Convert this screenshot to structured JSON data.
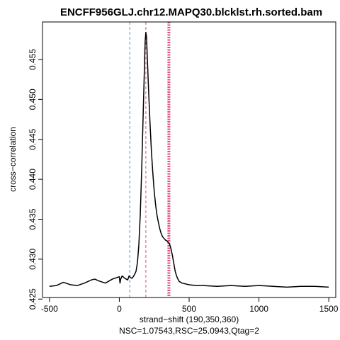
{
  "chart_data": {
    "type": "line",
    "title": "ENCFF956GLJ.chr12.MAPQ30.blcklst.rh.sorted.bam",
    "xlabel": "strand−shift (190,350,360)",
    "subtitle": "NSC=1.07543,RSC=25.0943,Qtag=2",
    "ylabel": "cross−correlation",
    "xlim": [
      -550,
      1550
    ],
    "ylim": [
      0.4252,
      0.4597
    ],
    "x_ticks": [
      -500,
      0,
      500,
      1000,
      1500
    ],
    "x_tick_labels": [
      "-500",
      "0",
      "500",
      "1000",
      "1500"
    ],
    "y_ticks": [
      0.425,
      0.43,
      0.435,
      0.44,
      0.445,
      0.45,
      0.455
    ],
    "y_tick_labels": [
      "0.425",
      "0.430",
      "0.435",
      "0.440",
      "0.445",
      "0.450",
      "0.455"
    ],
    "vlines": [
      {
        "x": 75,
        "color": "#4a90d9",
        "style": "dashed"
      },
      {
        "x": 190,
        "color": "#e0507a",
        "style": "dashed"
      },
      {
        "x": 350,
        "color": "#e0507a",
        "style": "dotted"
      },
      {
        "x": 360,
        "color": "#e0507a",
        "style": "dotted"
      }
    ],
    "series": [
      {
        "color": "#000000",
        "x": [
          -500,
          -450,
          -400,
          -350,
          -300,
          -250,
          -200,
          -175,
          -150,
          -100,
          -50,
          0,
          5,
          10,
          20,
          40,
          60,
          70,
          80,
          90,
          100,
          110,
          120,
          130,
          140,
          150,
          160,
          170,
          180,
          185,
          190,
          195,
          200,
          210,
          220,
          230,
          240,
          250,
          260,
          270,
          280,
          290,
          300,
          310,
          320,
          330,
          340,
          350,
          360,
          370,
          380,
          390,
          400,
          410,
          420,
          430,
          450,
          500,
          550,
          600,
          700,
          800,
          900,
          1000,
          1100,
          1200,
          1300,
          1400,
          1500
        ],
        "y": [
          0.4266,
          0.4267,
          0.4271,
          0.4268,
          0.4267,
          0.427,
          0.4274,
          0.4275,
          0.4273,
          0.427,
          0.4275,
          0.4278,
          0.427,
          0.4275,
          0.4279,
          0.4276,
          0.4274,
          0.4279,
          0.4277,
          0.4276,
          0.4278,
          0.4281,
          0.4285,
          0.4296,
          0.4318,
          0.4355,
          0.441,
          0.4475,
          0.454,
          0.4573,
          0.4584,
          0.4578,
          0.4555,
          0.451,
          0.447,
          0.4435,
          0.4408,
          0.4385,
          0.4368,
          0.4355,
          0.4346,
          0.4338,
          0.4332,
          0.4328,
          0.4326,
          0.4324,
          0.4323,
          0.4321,
          0.4319,
          0.4313,
          0.4305,
          0.4295,
          0.4285,
          0.4279,
          0.4275,
          0.4272,
          0.427,
          0.4268,
          0.4267,
          0.4267,
          0.4266,
          0.4267,
          0.4266,
          0.4267,
          0.4266,
          0.4265,
          0.4266,
          0.4266,
          0.4265
        ]
      }
    ]
  }
}
